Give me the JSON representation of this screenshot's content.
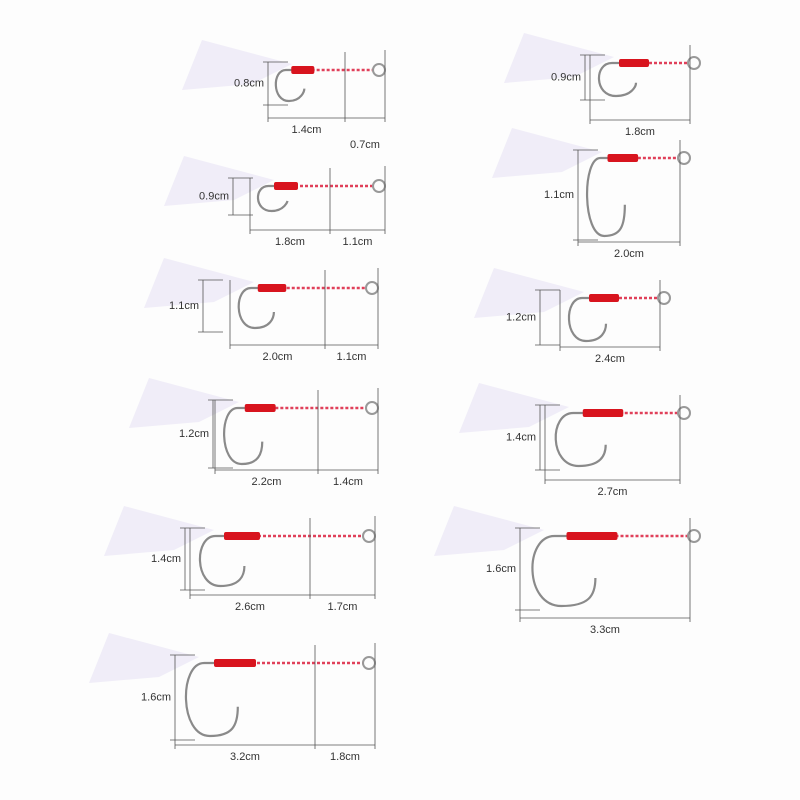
{
  "hooks": [
    {
      "gap": "0.8cm",
      "shank": "1.4cm",
      "line": "0.7cm"
    },
    {
      "gap": "0.9cm",
      "shank": "1.8cm",
      "line": "1.1cm"
    },
    {
      "gap": "1.1cm",
      "shank": "2.0cm",
      "line": "1.1cm"
    },
    {
      "gap": "1.2cm",
      "shank": "2.2cm",
      "line": "1.4cm"
    },
    {
      "gap": "1.4cm",
      "shank": "2.6cm",
      "line": "1.7cm"
    },
    {
      "gap": "1.6cm",
      "shank": "3.2cm",
      "line": "1.8cm"
    },
    {
      "gap": "0.9cm",
      "shank": "1.8cm"
    },
    {
      "gap": "1.1cm",
      "shank": "2.0cm"
    },
    {
      "gap": "1.2cm",
      "shank": "2.4cm"
    },
    {
      "gap": "1.4cm",
      "shank": "2.7cm"
    },
    {
      "gap": "1.6cm",
      "shank": "3.3cm"
    }
  ]
}
